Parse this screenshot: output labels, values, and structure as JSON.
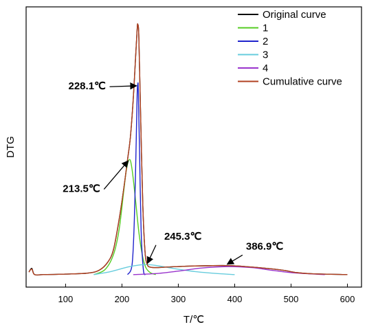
{
  "chart_data": {
    "type": "line",
    "xlabel": "T/℃",
    "ylabel": "DTG",
    "xlim": [
      30,
      625
    ],
    "ylim": [
      -0.05,
      1.07
    ],
    "x_ticks": [
      100,
      200,
      300,
      400,
      500,
      600
    ],
    "grid": false,
    "legend_position": "top-right",
    "series": [
      {
        "name": "Original curve",
        "color": "#000000",
        "x": [
          35,
          40,
          45,
          60,
          100,
          140,
          160,
          175,
          185,
          195,
          203,
          210,
          215,
          220,
          224,
          227,
          228.1,
          230,
          233,
          237,
          241,
          245,
          250,
          260,
          280,
          320,
          386.9,
          430,
          470,
          490,
          510,
          540,
          600
        ],
        "y": [
          0.01,
          0.025,
          0.0,
          0.0,
          0.002,
          0.006,
          0.018,
          0.05,
          0.1,
          0.22,
          0.34,
          0.46,
          0.55,
          0.7,
          0.86,
          0.98,
          1.0,
          0.95,
          0.65,
          0.28,
          0.09,
          0.04,
          0.03,
          0.028,
          0.03,
          0.034,
          0.036,
          0.03,
          0.022,
          0.016,
          0.008,
          0.003,
          0.0
        ]
      },
      {
        "name": "1",
        "color": "#55cc22",
        "x": [
          150,
          170,
          185,
          195,
          203,
          208,
          213.5,
          218,
          224,
          230,
          236,
          242,
          250,
          260
        ],
        "y": [
          0.0,
          0.02,
          0.08,
          0.18,
          0.33,
          0.42,
          0.46,
          0.42,
          0.3,
          0.17,
          0.08,
          0.03,
          0.008,
          0.0
        ]
      },
      {
        "name": "2",
        "color": "#1e22cc",
        "x": [
          210,
          218,
          222,
          225,
          227,
          228.1,
          229,
          231,
          234,
          238,
          242
        ],
        "y": [
          0.0,
          0.04,
          0.22,
          0.5,
          0.72,
          0.76,
          0.74,
          0.52,
          0.18,
          0.02,
          0.0
        ]
      },
      {
        "name": "3",
        "color": "#66ccdd",
        "x": [
          150,
          180,
          210,
          230,
          245.3,
          265,
          290,
          330,
          370,
          400
        ],
        "y": [
          0.0,
          0.012,
          0.03,
          0.038,
          0.04,
          0.035,
          0.025,
          0.012,
          0.004,
          0.0
        ]
      },
      {
        "name": "4",
        "color": "#9933cc",
        "x": [
          220,
          260,
          300,
          340,
          386.9,
          430,
          470,
          510,
          560
        ],
        "y": [
          0.0,
          0.004,
          0.014,
          0.026,
          0.032,
          0.028,
          0.016,
          0.006,
          0.0
        ]
      },
      {
        "name": "Cumulative curve",
        "color": "#b04020",
        "x": [
          35,
          40,
          45,
          60,
          100,
          140,
          160,
          175,
          185,
          195,
          203,
          210,
          215,
          220,
          224,
          227,
          228.1,
          230,
          233,
          237,
          241,
          245,
          250,
          260,
          280,
          320,
          386.9,
          430,
          470,
          490,
          510,
          540,
          600
        ],
        "y": [
          0.01,
          0.022,
          0.0,
          0.0,
          0.002,
          0.006,
          0.018,
          0.05,
          0.1,
          0.22,
          0.34,
          0.46,
          0.55,
          0.7,
          0.86,
          0.98,
          1.0,
          0.95,
          0.65,
          0.28,
          0.09,
          0.04,
          0.03,
          0.028,
          0.03,
          0.034,
          0.036,
          0.03,
          0.022,
          0.016,
          0.008,
          0.003,
          0.0
        ]
      }
    ],
    "annotations": [
      {
        "text": "228.1℃",
        "target_x": 228.1,
        "target_y": 0.76,
        "label_x": 105,
        "label_y": 0.74
      },
      {
        "text": "213.5℃",
        "target_x": 213.5,
        "target_y": 0.46,
        "label_x": 95,
        "label_y": 0.33
      },
      {
        "text": "245.3℃",
        "target_x": 245.3,
        "target_y": 0.04,
        "label_x": 275,
        "label_y": 0.14
      },
      {
        "text": "386.9℃",
        "target_x": 386.9,
        "target_y": 0.036,
        "label_x": 420,
        "label_y": 0.1
      }
    ]
  }
}
